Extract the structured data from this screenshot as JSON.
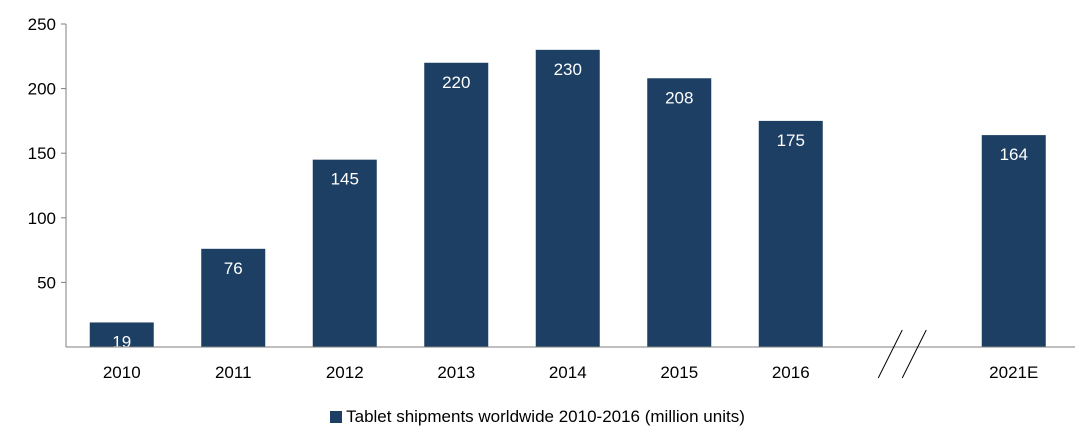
{
  "chart_data": {
    "type": "bar",
    "categories": [
      "2010",
      "2011",
      "2012",
      "2013",
      "2014",
      "2015",
      "2016",
      "",
      "2021E"
    ],
    "values": [
      19,
      76,
      145,
      220,
      230,
      208,
      175,
      null,
      164
    ],
    "data_labels": [
      "19",
      "76",
      "145",
      "220",
      "230",
      "208",
      "175",
      "",
      "164"
    ],
    "y_ticks": [
      "50",
      "100",
      "150",
      "200",
      "250"
    ],
    "y_tick_values": [
      50,
      100,
      150,
      200,
      250
    ],
    "ylim": [
      0,
      250
    ],
    "axis_break_after": "2016",
    "grid": false,
    "legend_position": "bottom",
    "series": [
      {
        "name": "Tablet shipments worldwide 2010-2016 (million units)",
        "color": "#1c3f63"
      }
    ]
  },
  "legend": {
    "label": "Tablet shipments worldwide 2010-2016 (million units)"
  }
}
